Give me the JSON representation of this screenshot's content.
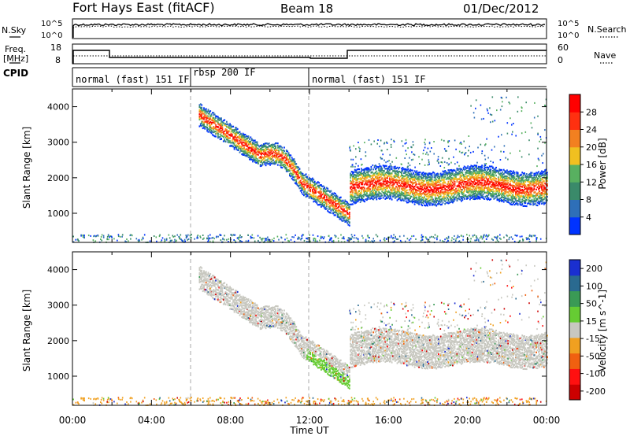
{
  "header": {
    "station": "Fort Hays East (fitACF)",
    "beam": "Beam 18",
    "date": "01/Dec/2012"
  },
  "strips": {
    "noise": {
      "left_label": "N.Sky",
      "right_label": "N.Search",
      "left_ticks": [
        "10^5",
        "10^0"
      ],
      "right_ticks": [
        "10^5",
        "10^0"
      ]
    },
    "freq": {
      "left_label_1": "Freq.",
      "left_label_2": "[MHz]",
      "right_label": "Nave",
      "left_ticks": [
        "18",
        "8"
      ],
      "right_ticks": [
        "60",
        "0"
      ]
    },
    "cpid": {
      "label": "CPID",
      "segments": [
        {
          "text": "normal (fast) 151 IF",
          "start_h": 0,
          "end_h": 6
        },
        {
          "text": "rbsp 200 IF",
          "start_h": 6,
          "end_h": 12
        },
        {
          "text": "normal (fast) 151 IF",
          "start_h": 12,
          "end_h": 24
        }
      ]
    }
  },
  "chart_data": [
    {
      "type": "heatmap",
      "title": "",
      "xlabel": "Time UT",
      "ylabel": "Slant Range [km]",
      "x_range_hours": [
        0,
        24
      ],
      "x_ticks": [
        "00:00",
        "04:00",
        "08:00",
        "12:00",
        "16:00",
        "20:00",
        "00:00"
      ],
      "y_ticks": [
        "1000",
        "2000",
        "3000",
        "4000"
      ],
      "ylim": [
        180,
        4500
      ],
      "colorbar": {
        "label": "Power [dB]",
        "ticks": [
          "4",
          "8",
          "12",
          "16",
          "20",
          "24",
          "28"
        ],
        "range": [
          0,
          32
        ],
        "colors": [
          "#0033ff",
          "#2e6fb8",
          "#3a8a6a",
          "#58b060",
          "#f0c020",
          "#f28020",
          "#ff3010",
          "#ff0000"
        ]
      },
      "features": [
        {
          "name": "main echo band",
          "start_h": 6.4,
          "end_h": 14.0,
          "range_km_start": 3800,
          "range_km_end": 1000
        },
        {
          "name": "f-region band",
          "start_h": 14.0,
          "end_h": 24.0,
          "range_km_low": 1400,
          "range_km_high": 2200
        }
      ]
    },
    {
      "type": "heatmap",
      "title": "",
      "xlabel": "Time UT",
      "ylabel": "Slant Range [km]",
      "x_range_hours": [
        0,
        24
      ],
      "x_ticks": [
        "00:00",
        "04:00",
        "08:00",
        "12:00",
        "16:00",
        "20:00",
        "00:00"
      ],
      "y_ticks": [
        "1000",
        "2000",
        "3000",
        "4000"
      ],
      "ylim": [
        180,
        4500
      ],
      "colorbar": {
        "label": "Velocity [m s^-1]",
        "ticks": [
          "200",
          "100",
          "50",
          "15",
          "-15",
          "-50",
          "-100",
          "-200"
        ],
        "range": [
          -250,
          250
        ],
        "colors": [
          "#1a2fd0",
          "#2a6a90",
          "#3a9a55",
          "#66cc33",
          "#c8c8c0",
          "#f0a020",
          "#f06010",
          "#ff1010",
          "#cc0000"
        ]
      },
      "features": [
        {
          "name": "ground scatter (grey)",
          "start_h": 6.4,
          "end_h": 24.0
        }
      ]
    }
  ]
}
